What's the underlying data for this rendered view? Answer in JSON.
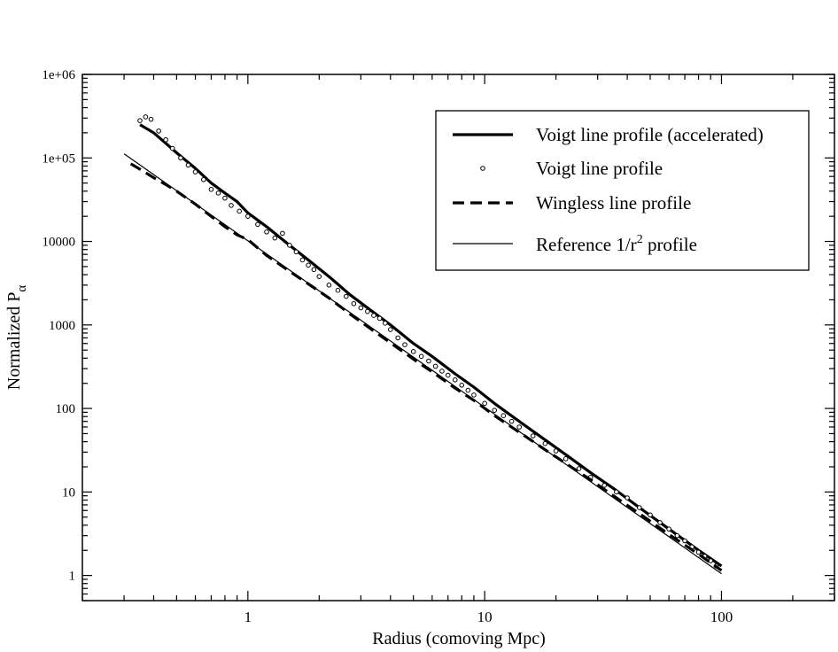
{
  "chart_data": {
    "type": "line",
    "xscale": "log",
    "yscale": "log",
    "xlabel": "Radius (comoving Mpc)",
    "ylabel": "Normalized  P",
    "ylabel_subscript": "α",
    "xlim": [
      0.2,
      300
    ],
    "ylim": [
      0.5,
      1000000
    ],
    "xticks": [
      {
        "value": 1,
        "label": "1"
      },
      {
        "value": 10,
        "label": "10"
      },
      {
        "value": 100,
        "label": "100"
      }
    ],
    "yticks": [
      {
        "value": 1,
        "label": "1"
      },
      {
        "value": 10,
        "label": "10"
      },
      {
        "value": 100,
        "label": "100"
      },
      {
        "value": 1000,
        "label": "1000"
      },
      {
        "value": 10000,
        "label": "10000"
      },
      {
        "value": 100000,
        "label": "1e+05"
      },
      {
        "value": 1000000,
        "label": "1e+06"
      }
    ],
    "legend_position": "top-right",
    "series": [
      {
        "name": "Voigt line profile (accelerated)",
        "style": "thick-solid",
        "x": [
          0.35,
          0.4,
          0.45,
          0.5,
          0.6,
          0.7,
          0.8,
          0.9,
          1.0,
          1.2,
          1.5,
          1.8,
          2.2,
          2.7,
          3.3,
          4.0,
          5.0,
          6.0,
          7.5,
          9.0,
          11,
          14,
          18,
          22,
          28,
          35,
          45,
          60,
          80,
          100
        ],
        "y": [
          250000,
          200000,
          150000,
          115000,
          75000,
          50000,
          38000,
          30000,
          22000,
          15000,
          9000,
          6000,
          3800,
          2300,
          1500,
          1000,
          600,
          420,
          260,
          180,
          115,
          70,
          42,
          28,
          17,
          11,
          6.5,
          3.6,
          2.0,
          1.3
        ]
      },
      {
        "name": "Voigt line profile",
        "style": "open-circles",
        "x": [
          0.35,
          0.37,
          0.39,
          0.42,
          0.45,
          0.48,
          0.52,
          0.56,
          0.6,
          0.65,
          0.7,
          0.75,
          0.8,
          0.85,
          0.92,
          1.0,
          1.1,
          1.2,
          1.3,
          1.4,
          1.5,
          1.6,
          1.7,
          1.8,
          1.9,
          2.0,
          2.2,
          2.4,
          2.6,
          2.8,
          3.0,
          3.2,
          3.4,
          3.6,
          3.8,
          4.0,
          4.3,
          4.6,
          5.0,
          5.4,
          5.8,
          6.2,
          6.6,
          7.0,
          7.5,
          8.0,
          8.5,
          9.0,
          10,
          11,
          12,
          13,
          14,
          16,
          18,
          20,
          22,
          25,
          28,
          32,
          36,
          40,
          45,
          50,
          55,
          60,
          65,
          70,
          75,
          80,
          85,
          90,
          95
        ],
        "y": [
          280000,
          310000,
          290000,
          210000,
          165000,
          130000,
          100000,
          82000,
          68000,
          55000,
          42000,
          38000,
          33000,
          27000,
          23000,
          20000,
          16000,
          13000,
          11000,
          12500,
          9000,
          7500,
          6000,
          5200,
          4600,
          3800,
          3000,
          2600,
          2200,
          1800,
          1600,
          1450,
          1300,
          1200,
          1050,
          880,
          700,
          580,
          480,
          420,
          370,
          320,
          280,
          250,
          220,
          190,
          165,
          145,
          115,
          95,
          82,
          70,
          60,
          47,
          38,
          31,
          25,
          19,
          15,
          12,
          10,
          8.5,
          6.5,
          5.3,
          4.3,
          3.6,
          3.0,
          2.6,
          2.2,
          1.9,
          1.7,
          1.5,
          1.3
        ]
      },
      {
        "name": "Wingless line profile",
        "style": "thick-dashed",
        "x": [
          0.32,
          0.36,
          0.4,
          0.45,
          0.5,
          0.6,
          0.7,
          0.8,
          0.9,
          1.0,
          1.2,
          1.5,
          1.8,
          2.2,
          2.7,
          3.3,
          4.0,
          5.0,
          6.0,
          7.5,
          9.0,
          11,
          14,
          18,
          22,
          28,
          35,
          45,
          60,
          80,
          100
        ],
        "y": [
          85000,
          70000,
          58000,
          48000,
          40000,
          28000,
          20000,
          15000,
          12000,
          10500,
          6800,
          4400,
          3100,
          2100,
          1350,
          900,
          610,
          390,
          275,
          175,
          125,
          82,
          52,
          32,
          22,
          14,
          9.0,
          5.5,
          3.1,
          1.8,
          1.15
        ]
      },
      {
        "name": "Reference 1/r",
        "name_superscript": "2",
        "name_suffix": " profile",
        "style": "thin-solid",
        "x": [
          0.3,
          100
        ],
        "y": [
          112000,
          1.05
        ]
      }
    ]
  }
}
